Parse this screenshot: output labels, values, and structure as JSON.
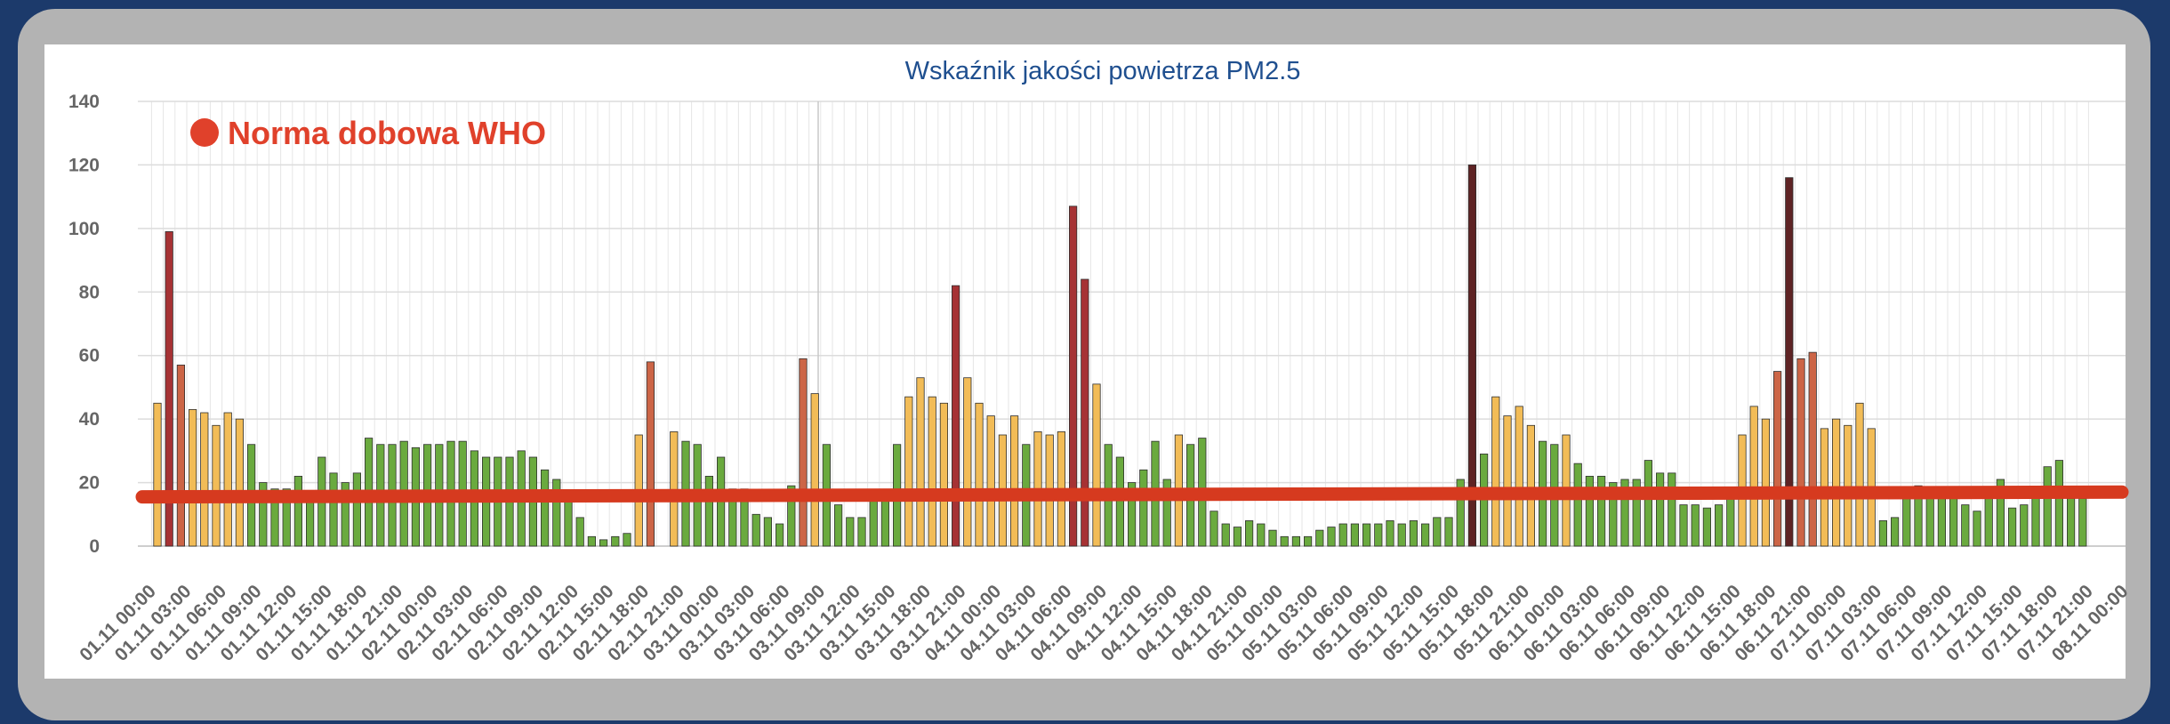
{
  "chart_data": {
    "type": "bar",
    "title": "Wskaźnik jakości powietrza PM2.5",
    "xlabel": "",
    "ylabel": "",
    "ylim": [
      0,
      140
    ],
    "yticks": [
      0,
      20,
      40,
      60,
      80,
      100,
      120,
      140
    ],
    "grid": true,
    "x_labels": [
      "01.11 00:00",
      "01.11 03:00",
      "01.11 06:00",
      "01.11 09:00",
      "01.11 12:00",
      "01.11 15:00",
      "01.11 18:00",
      "01.11 21:00",
      "02.11 00:00",
      "02.11 03:00",
      "02.11 06:00",
      "02.11 09:00",
      "02.11 12:00",
      "02.11 15:00",
      "02.11 18:00",
      "02.11 21:00",
      "03.11 00:00",
      "03.11 03:00",
      "03.11 06:00",
      "03.11 09:00",
      "03.11 12:00",
      "03.11 15:00",
      "03.11 18:00",
      "03.11 21:00",
      "04.11 00:00",
      "04.11 03:00",
      "04.11 06:00",
      "04.11 09:00",
      "04.11 12:00",
      "04.11 15:00",
      "04.11 18:00",
      "04.11 21:00",
      "05.11 00:00",
      "05.11 03:00",
      "05.11 06:00",
      "05.11 09:00",
      "05.11 12:00",
      "05.11 15:00",
      "05.11 18:00",
      "05.11 21:00",
      "06.11 00:00",
      "06.11 03:00",
      "06.11 06:00",
      "06.11 09:00",
      "06.11 12:00",
      "06.11 15:00",
      "06.11 18:00",
      "06.11 21:00",
      "07.11 00:00",
      "07.11 03:00",
      "07.11 06:00",
      "07.11 09:00",
      "07.11 12:00",
      "07.11 15:00",
      "07.11 18:00",
      "07.11 21:00",
      "08.11 00:00"
    ],
    "values": [
      45,
      99,
      57,
      43,
      42,
      38,
      42,
      40,
      32,
      20,
      18,
      18,
      22,
      15,
      28,
      23,
      20,
      23,
      34,
      32,
      32,
      33,
      31,
      32,
      32,
      33,
      33,
      30,
      28,
      28,
      28,
      30,
      28,
      24,
      21,
      15,
      9,
      3,
      2,
      3,
      4,
      35,
      58,
      0,
      36,
      33,
      32,
      22,
      28,
      18,
      18,
      10,
      9,
      7,
      19,
      59,
      48,
      32,
      13,
      9,
      9,
      17,
      17,
      32,
      47,
      53,
      47,
      45,
      82,
      53,
      45,
      41,
      35,
      41,
      32,
      36,
      35,
      36,
      107,
      84,
      51,
      32,
      28,
      20,
      24,
      33,
      21,
      35,
      32,
      34,
      11,
      7,
      6,
      8,
      7,
      5,
      3,
      3,
      3,
      5,
      6,
      7,
      7,
      7,
      7,
      8,
      7,
      8,
      7,
      9,
      9,
      21,
      120,
      29,
      47,
      41,
      44,
      38,
      33,
      32,
      35,
      26,
      22,
      22,
      20,
      21,
      21,
      27,
      23,
      23,
      13,
      13,
      12,
      13,
      15,
      35,
      44,
      40,
      55,
      116,
      59,
      61,
      37,
      40,
      38,
      45,
      37,
      8,
      9,
      15,
      19,
      18,
      16,
      15,
      13,
      11,
      15,
      21,
      12,
      13,
      15,
      25,
      27,
      15,
      15
    ],
    "who_norm_line": {
      "label": "Norma dobowa WHO",
      "start": 15.5,
      "end": 17,
      "color": "#d63a1f"
    },
    "colors": {
      "green": "#6aaa3e",
      "yellow": "#f2bc57",
      "orange": "#cc6546",
      "red": "#a63234",
      "darkred": "#5e2324"
    }
  }
}
